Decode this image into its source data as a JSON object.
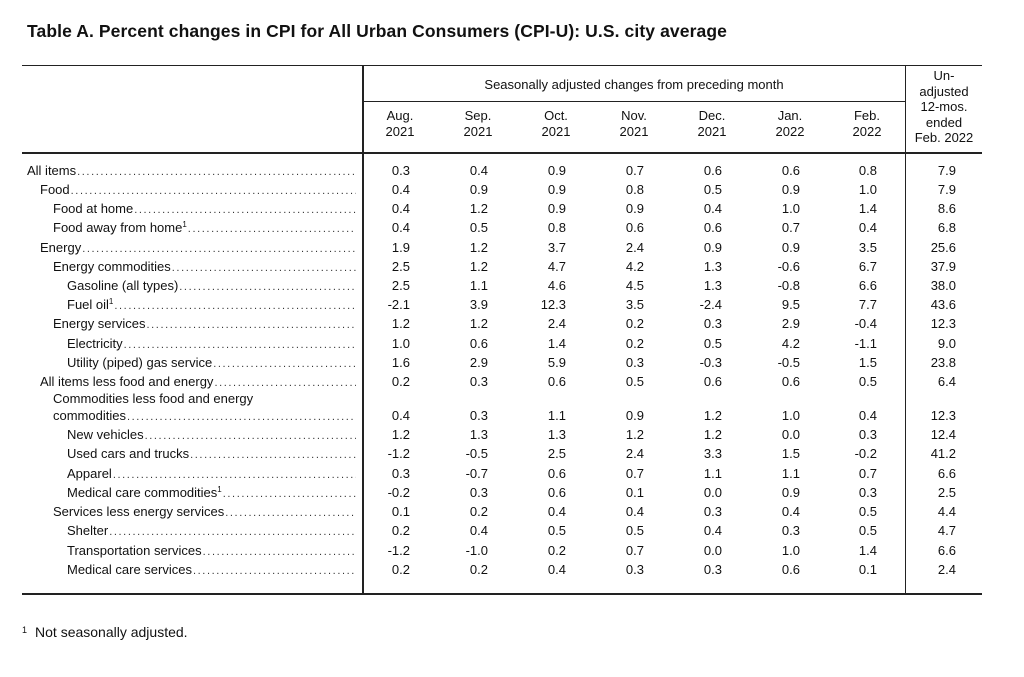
{
  "title": "Table A. Percent changes in CPI for All Urban Consumers (CPI-U): U.S. city average",
  "header": {
    "group_label": "Seasonally adjusted changes from preceding month",
    "months": [
      {
        "line1": "Aug.",
        "line2": "2021"
      },
      {
        "line1": "Sep.",
        "line2": "2021"
      },
      {
        "line1": "Oct.",
        "line2": "2021"
      },
      {
        "line1": "Nov.",
        "line2": "2021"
      },
      {
        "line1": "Dec.",
        "line2": "2021"
      },
      {
        "line1": "Jan.",
        "line2": "2022"
      },
      {
        "line1": "Feb.",
        "line2": "2022"
      }
    ],
    "unadjusted": [
      "Un-",
      "adjusted",
      "12-mos.",
      "ended",
      "Feb. 2022"
    ]
  },
  "rows": [
    {
      "label": "All items",
      "fn": "",
      "values": [
        "0.3",
        "0.4",
        "0.9",
        "0.7",
        "0.6",
        "0.6",
        "0.8",
        "7.9"
      ]
    },
    {
      "label": "Food",
      "fn": "",
      "values": [
        "0.4",
        "0.9",
        "0.9",
        "0.8",
        "0.5",
        "0.9",
        "1.0",
        "7.9"
      ]
    },
    {
      "label": "Food at home",
      "fn": "",
      "values": [
        "0.4",
        "1.2",
        "0.9",
        "0.9",
        "0.4",
        "1.0",
        "1.4",
        "8.6"
      ]
    },
    {
      "label": "Food away from home",
      "fn": "1",
      "values": [
        "0.4",
        "0.5",
        "0.8",
        "0.6",
        "0.6",
        "0.7",
        "0.4",
        "6.8"
      ]
    },
    {
      "label": "Energy",
      "fn": "",
      "values": [
        "1.9",
        "1.2",
        "3.7",
        "2.4",
        "0.9",
        "0.9",
        "3.5",
        "25.6"
      ]
    },
    {
      "label": "Energy commodities",
      "fn": "",
      "values": [
        "2.5",
        "1.2",
        "4.7",
        "4.2",
        "1.3",
        "-0.6",
        "6.7",
        "37.9"
      ]
    },
    {
      "label": "Gasoline (all types)",
      "fn": "",
      "values": [
        "2.5",
        "1.1",
        "4.6",
        "4.5",
        "1.3",
        "-0.8",
        "6.6",
        "38.0"
      ]
    },
    {
      "label": "Fuel oil",
      "fn": "1",
      "values": [
        "-2.1",
        "3.9",
        "12.3",
        "3.5",
        "-2.4",
        "9.5",
        "7.7",
        "43.6"
      ]
    },
    {
      "label": "Energy services",
      "fn": "",
      "values": [
        "1.2",
        "1.2",
        "2.4",
        "0.2",
        "0.3",
        "2.9",
        "-0.4",
        "12.3"
      ]
    },
    {
      "label": "Electricity",
      "fn": "",
      "values": [
        "1.0",
        "0.6",
        "1.4",
        "0.2",
        "0.5",
        "4.2",
        "-1.1",
        "9.0"
      ]
    },
    {
      "label": "Utility (piped) gas service",
      "fn": "",
      "values": [
        "1.6",
        "2.9",
        "5.9",
        "0.3",
        "-0.3",
        "-0.5",
        "1.5",
        "23.8"
      ]
    },
    {
      "label": "All items less food and energy",
      "fn": "",
      "values": [
        "0.2",
        "0.3",
        "0.6",
        "0.5",
        "0.6",
        "0.6",
        "0.5",
        "6.4"
      ]
    },
    {
      "label_line1": "Commodities less food and energy",
      "label": "commodities",
      "fn": "",
      "values": [
        "0.4",
        "0.3",
        "1.1",
        "0.9",
        "1.2",
        "1.0",
        "0.4",
        "12.3"
      ]
    },
    {
      "label": "New vehicles",
      "fn": "",
      "values": [
        "1.2",
        "1.3",
        "1.3",
        "1.2",
        "1.2",
        "0.0",
        "0.3",
        "12.4"
      ]
    },
    {
      "label": "Used cars and trucks",
      "fn": "",
      "values": [
        "-1.2",
        "-0.5",
        "2.5",
        "2.4",
        "3.3",
        "1.5",
        "-0.2",
        "41.2"
      ]
    },
    {
      "label": "Apparel",
      "fn": "",
      "values": [
        "0.3",
        "-0.7",
        "0.6",
        "0.7",
        "1.1",
        "1.1",
        "0.7",
        "6.6"
      ]
    },
    {
      "label": "Medical care commodities",
      "fn": "1",
      "values": [
        "-0.2",
        "0.3",
        "0.6",
        "0.1",
        "0.0",
        "0.9",
        "0.3",
        "2.5"
      ]
    },
    {
      "label": "Services less energy services",
      "fn": "",
      "values": [
        "0.1",
        "0.2",
        "0.4",
        "0.4",
        "0.3",
        "0.4",
        "0.5",
        "4.4"
      ]
    },
    {
      "label": "Shelter",
      "fn": "",
      "values": [
        "0.2",
        "0.4",
        "0.5",
        "0.5",
        "0.4",
        "0.3",
        "0.5",
        "4.7"
      ]
    },
    {
      "label": "Transportation services",
      "fn": "",
      "values": [
        "-1.2",
        "-1.0",
        "0.2",
        "0.7",
        "0.0",
        "1.0",
        "1.4",
        "6.6"
      ]
    },
    {
      "label": "Medical care services",
      "fn": "",
      "values": [
        "0.2",
        "0.2",
        "0.4",
        "0.3",
        "0.3",
        "0.6",
        "0.1",
        "2.4"
      ]
    }
  ],
  "footnote": {
    "marker": "1",
    "text": "Not seasonally adjusted."
  }
}
